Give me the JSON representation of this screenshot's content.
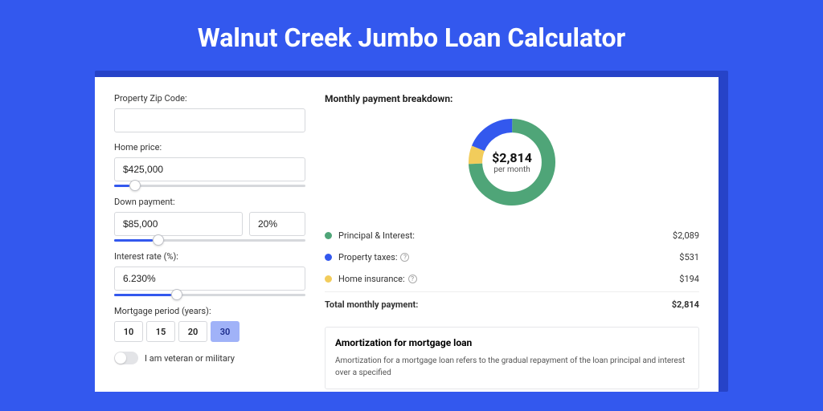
{
  "page": {
    "title": "Walnut Creek Jumbo Loan Calculator",
    "bg_color": "#3358ee"
  },
  "form": {
    "zip": {
      "label": "Property Zip Code:",
      "value": ""
    },
    "home_price": {
      "label": "Home price:",
      "value": "$425,000",
      "slider_pct": 8
    },
    "down_payment": {
      "label": "Down payment:",
      "value": "$85,000",
      "pct_value": "20%",
      "slider_pct": 20
    },
    "interest_rate": {
      "label": "Interest rate (%):",
      "value": "6.230%",
      "slider_pct": 30
    },
    "mortgage_period": {
      "label": "Mortgage period (years):",
      "options": [
        "10",
        "15",
        "20",
        "30"
      ],
      "selected": "30"
    },
    "veteran": {
      "label": "I am veteran or military",
      "checked": false
    }
  },
  "breakdown": {
    "title": "Monthly payment breakdown:",
    "center_amount": "$2,814",
    "center_sub": "per month",
    "items": [
      {
        "label": "Principal & Interest:",
        "amount": "$2,089",
        "color": "#4fa578",
        "has_info": false
      },
      {
        "label": "Property taxes:",
        "amount": "$531",
        "color": "#3358ee",
        "has_info": true
      },
      {
        "label": "Home insurance:",
        "amount": "$194",
        "color": "#f2cc5b",
        "has_info": true
      }
    ],
    "total": {
      "label": "Total monthly payment:",
      "amount": "$2,814"
    },
    "donut": {
      "type": "donut",
      "stroke_width": 18,
      "slices": [
        {
          "color": "#4fa578",
          "value": 74.2
        },
        {
          "color": "#3358ee",
          "value": 18.9
        },
        {
          "color": "#f2cc5b",
          "value": 6.9
        }
      ]
    }
  },
  "amortization": {
    "title": "Amortization for mortgage loan",
    "text": "Amortization for a mortgage loan refers to the gradual repayment of the loan principal and interest over a specified"
  }
}
